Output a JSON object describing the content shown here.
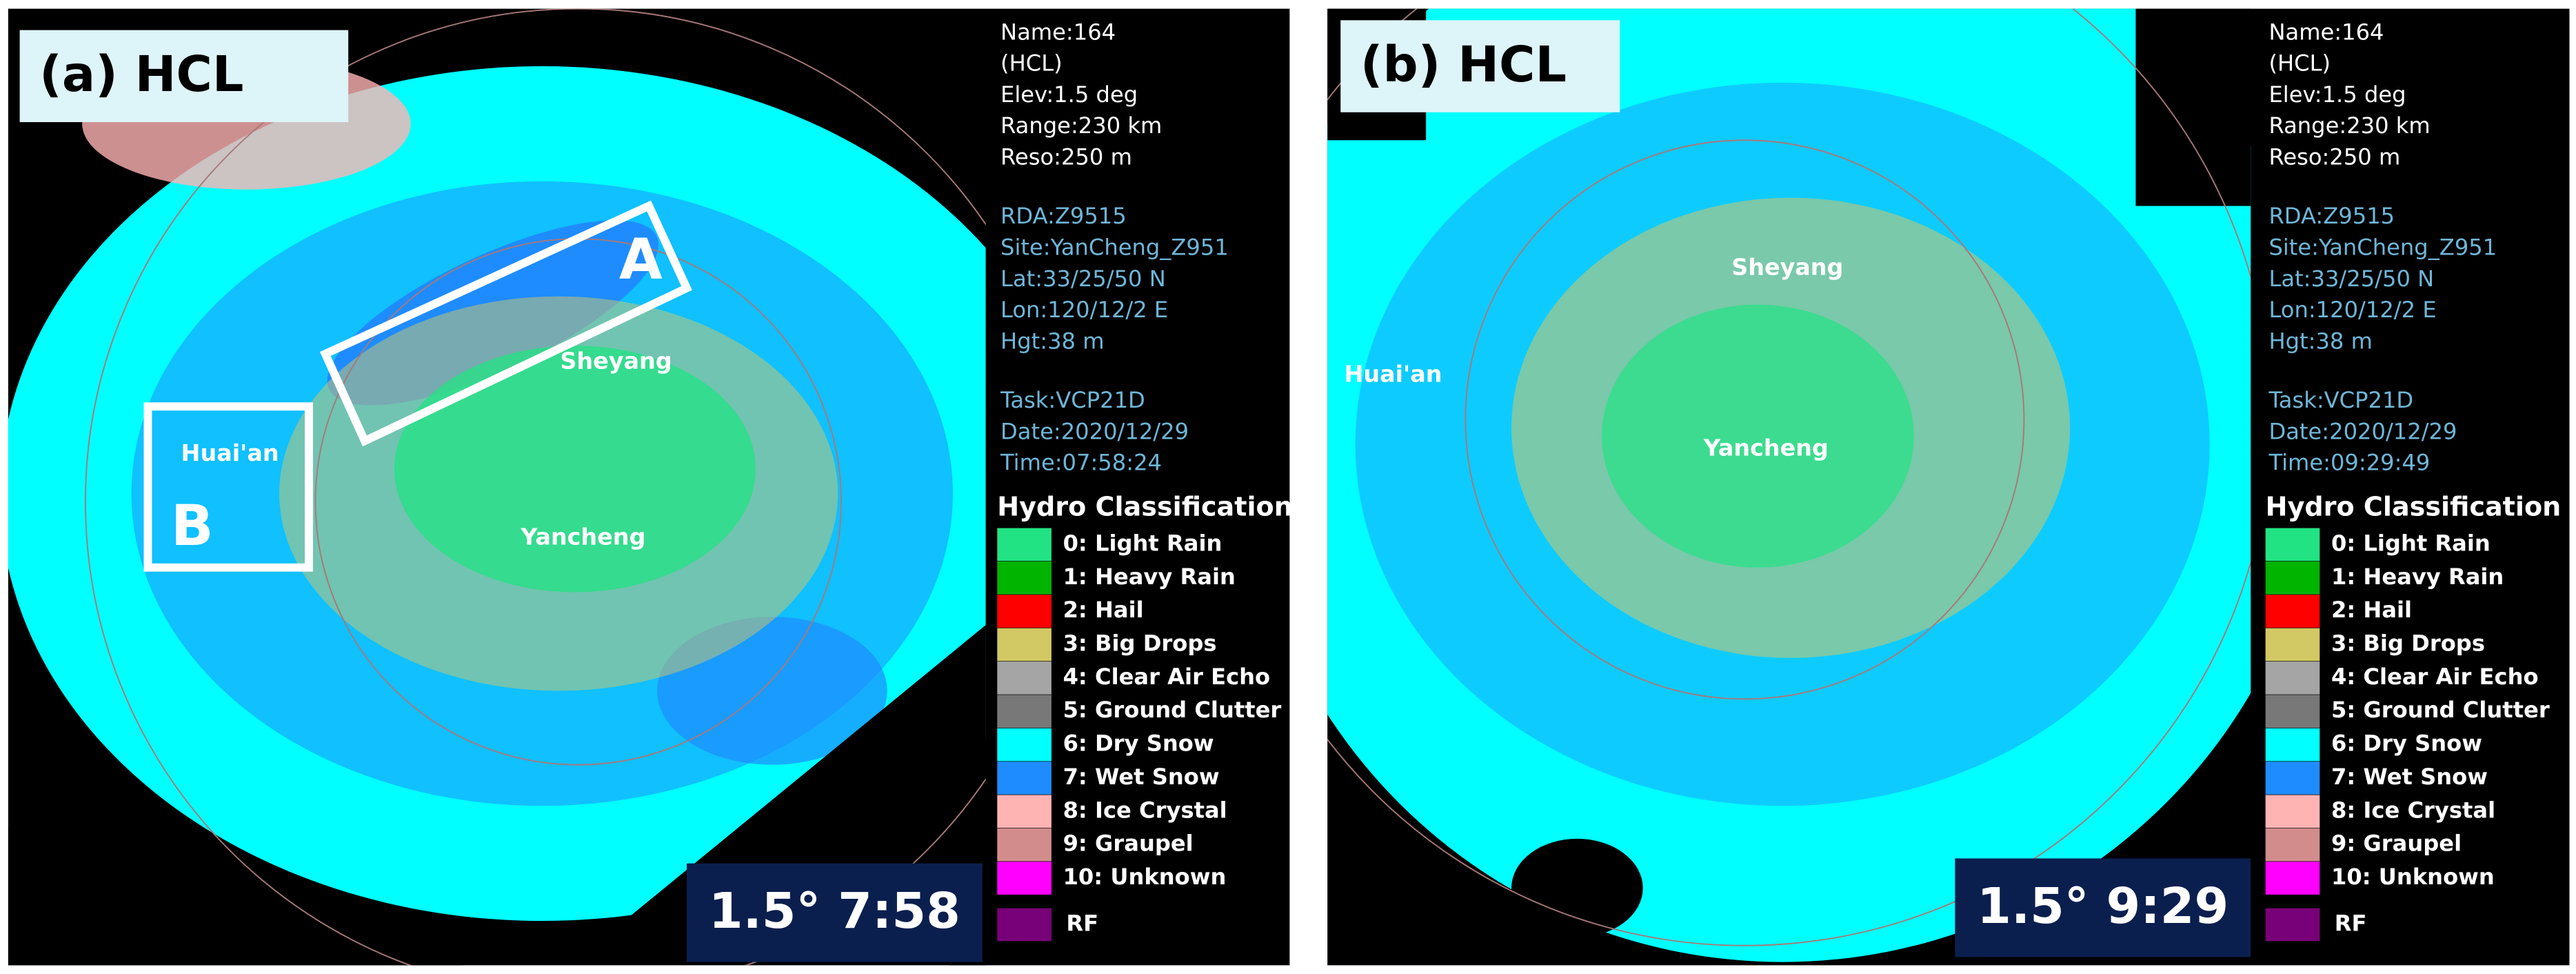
{
  "panels": [
    {
      "label": "(a) HCL",
      "info": [
        "Name:164",
        "(HCL)",
        "Elev:1.5 deg",
        "Range:230 km",
        "Reso:250 m"
      ],
      "site": [
        "RDA:Z9515",
        "Site:YanCheng_Z951",
        "Lat:33/25/50 N",
        "Lon:120/12/2 E",
        "Hgt:38 m"
      ],
      "task": [
        "Task:VCP21D",
        "Date:2020/12/29",
        "Time:07:58:24"
      ],
      "badge": "1.5° 7:58",
      "places": [
        "Sheyang",
        "Huai'an",
        "Yancheng"
      ],
      "boxes": [
        "A",
        "B"
      ]
    },
    {
      "label": "(b) HCL",
      "info": [
        "Name:164",
        "(HCL)",
        "Elev:1.5 deg",
        "Range:230 km",
        "Reso:250 m"
      ],
      "site": [
        "RDA:Z9515",
        "Site:YanCheng_Z951",
        "Lat:33/25/50 N",
        "Lon:120/12/2 E",
        "Hgt:38 m"
      ],
      "task": [
        "Task:VCP21D",
        "Date:2020/12/29",
        "Time:09:29:49"
      ],
      "badge": "1.5° 9:29",
      "places": [
        "Sheyang",
        "Huai'an",
        "Yancheng"
      ]
    }
  ],
  "legend_title": "Hydro Classification",
  "legend": [
    {
      "label": "0: Light Rain",
      "color": "#22e383"
    },
    {
      "label": "1: Heavy Rain",
      "color": "#00b400"
    },
    {
      "label": "2: Hail",
      "color": "#ff0000"
    },
    {
      "label": "3: Big Drops",
      "color": "#d2c864"
    },
    {
      "label": "4: Clear Air Echo",
      "color": "#a5a5a5"
    },
    {
      "label": "5: Ground Clutter",
      "color": "#787878"
    },
    {
      "label": "6: Dry Snow",
      "color": "#00ffff"
    },
    {
      "label": "7: Wet Snow",
      "color": "#1e8cff"
    },
    {
      "label": "8: Ice Crystal",
      "color": "#ffb4b4"
    },
    {
      "label": "9: Graupel",
      "color": "#d28c8c"
    },
    {
      "label": "10: Unknown",
      "color": "#ff00ff"
    },
    {
      "label": "RF",
      "color": "#780078"
    }
  ]
}
